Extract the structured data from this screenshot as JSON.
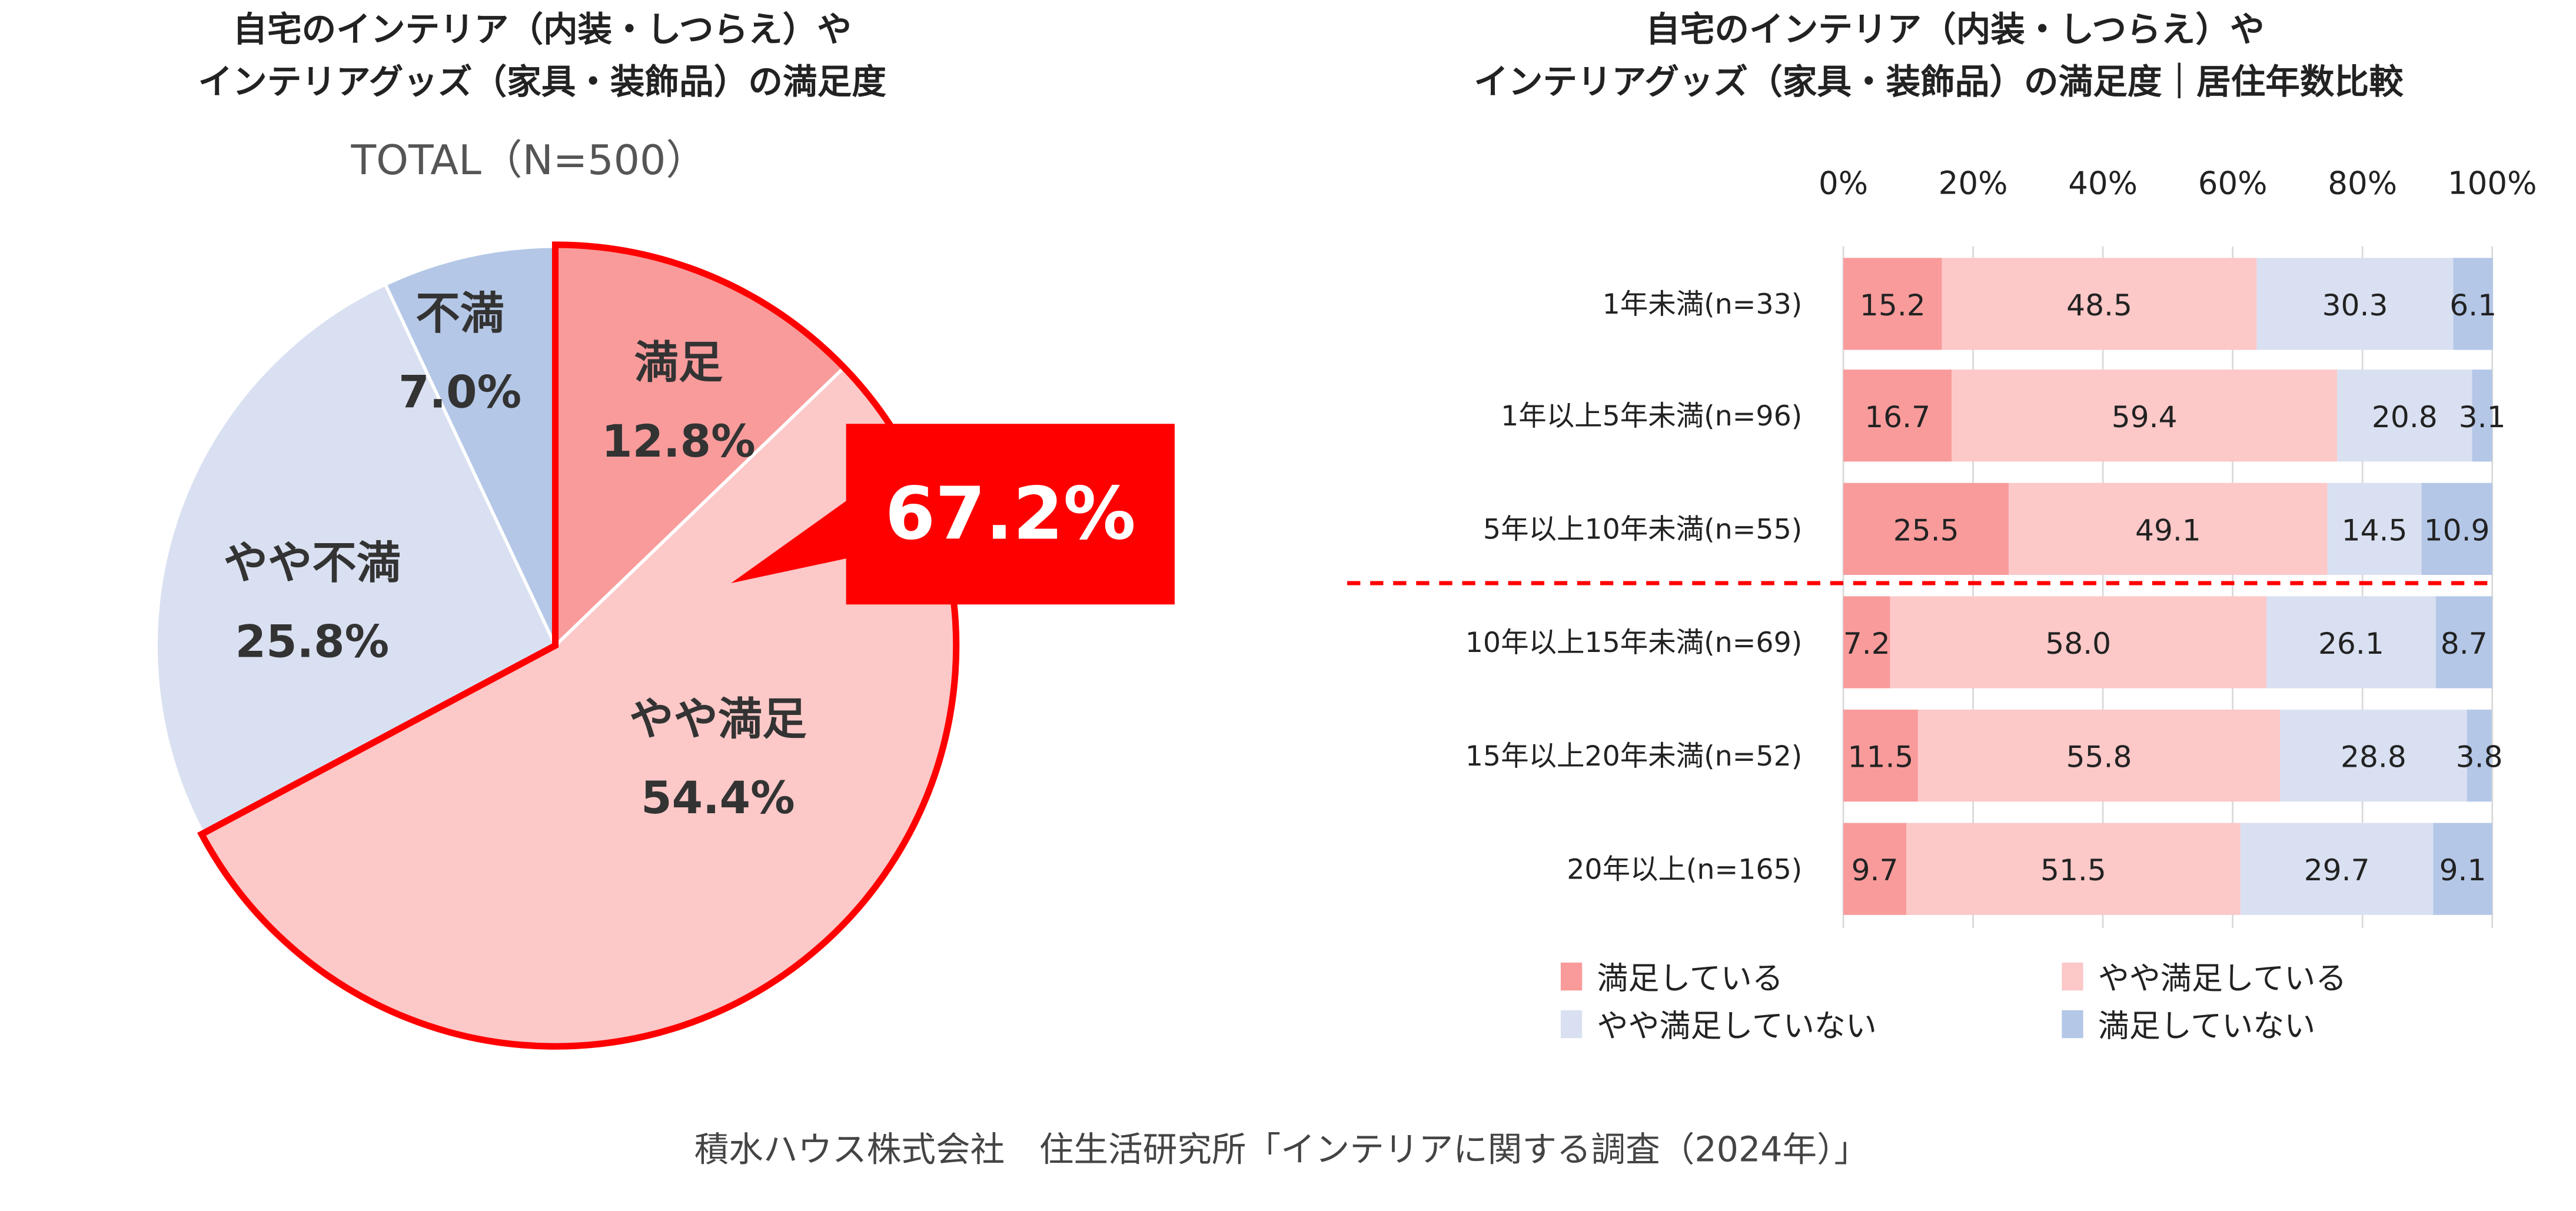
{
  "colors": {
    "satisfied": "#F99B9B",
    "somewhat_satisfied": "#FCC8C8",
    "somewhat_dissatisfied": "#D9E0F1",
    "dissatisfied": "#B4C7E7",
    "highlight": "#FF0000"
  },
  "chart_data": [
    {
      "type": "pie",
      "title": [
        "自宅のインテリア（内装・しつらえ）や",
        "インテリアグッズ（家具・装飾品）の満足度"
      ],
      "subtitle": "TOTAL（N=500）",
      "slices": [
        {
          "label": "満足",
          "value": 12.8,
          "text": "12.8%"
        },
        {
          "label": "やや満足",
          "value": 54.4,
          "text": "54.4%"
        },
        {
          "label": "やや不満",
          "value": 25.8,
          "text": "25.8%"
        },
        {
          "label": "不満",
          "value": 7.0,
          "text": "7.0%"
        }
      ],
      "callout": "67.2%"
    },
    {
      "type": "bar",
      "orientation": "horizontal",
      "stacked": true,
      "title": [
        "自宅のインテリア（内装・しつらえ）や",
        "インテリアグッズ（家具・装飾品）の満足度｜居住年数比較"
      ],
      "xlim": [
        0,
        100
      ],
      "xticks": [
        "0%",
        "20%",
        "40%",
        "60%",
        "80%",
        "100%"
      ],
      "categories": [
        "1年未満(n=33)",
        "1年以上5年未満(n=96)",
        "5年以上10年未満(n=55)",
        "10年以上15年未満(n=69)",
        "15年以上20年未満(n=52)",
        "20年以上(n=165)"
      ],
      "series": [
        {
          "name": "満足している",
          "values": [
            15.2,
            16.7,
            25.5,
            7.2,
            11.5,
            9.7
          ],
          "labels": [
            "15.2",
            "16.7",
            "25.5",
            "7.2",
            "11.5",
            "9.7"
          ]
        },
        {
          "name": "やや満足している",
          "values": [
            48.5,
            59.4,
            49.1,
            58.0,
            55.8,
            51.5
          ],
          "labels": [
            "48.5",
            "59.4",
            "49.1",
            "58.0",
            "55.8",
            "51.5"
          ]
        },
        {
          "name": "やや満足していない",
          "values": [
            30.3,
            20.8,
            14.5,
            26.1,
            28.8,
            29.7
          ],
          "labels": [
            "30.3",
            "20.8",
            "14.5",
            "26.1",
            "28.8",
            "29.7"
          ]
        },
        {
          "name": "満足していない",
          "values": [
            6.1,
            3.1,
            10.9,
            8.7,
            3.8,
            9.1
          ],
          "labels": [
            "6.1",
            "3.1",
            "10.9",
            "8.7",
            "3.8",
            "9.1"
          ]
        }
      ],
      "legend": "bottom",
      "grid": true,
      "divider_after_category": 2
    }
  ],
  "footer": "積水ハウス株式会社　住生活研究所「インテリアに関する調査（2024年）」"
}
